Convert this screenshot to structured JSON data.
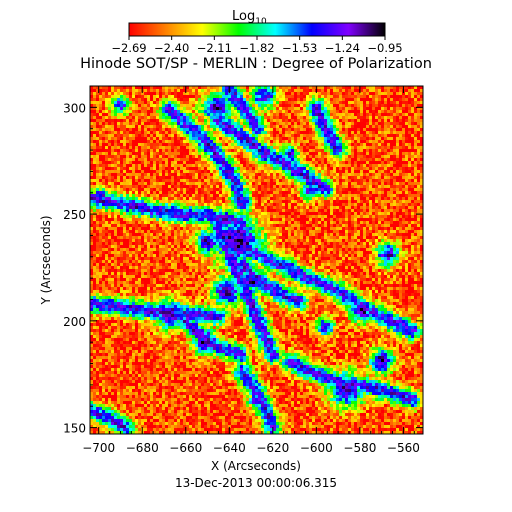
{
  "chart_data": {
    "type": "heatmap",
    "title": "Hinode SOT/SP - MERLIN : Degree of Polarization",
    "subtitle": "13-Dec-2013 00:00:06.315",
    "xlabel": "X (Arcseconds)",
    "ylabel": "Y (Arcseconds)",
    "xlim": [
      -704,
      -551
    ],
    "ylim": [
      147,
      310
    ],
    "x_ticks": [
      -700,
      -680,
      -660,
      -640,
      -620,
      -600,
      -580,
      -560
    ],
    "y_ticks": [
      150,
      200,
      250,
      300
    ],
    "x_tick_labels": [
      "−700",
      "−680",
      "−660",
      "−640",
      "−620",
      "−600",
      "−580",
      "−560"
    ],
    "y_tick_labels": [
      "150",
      "200",
      "250",
      "300"
    ],
    "colorbar": {
      "label_base": "Log",
      "label_sub": "10",
      "range": [
        -2.69,
        -0.95
      ],
      "ticks": [
        -2.69,
        -2.4,
        -2.11,
        -1.82,
        -1.53,
        -1.24,
        -0.95
      ],
      "tick_labels": [
        "−2.69",
        "−2.40",
        "−2.11",
        "−1.82",
        "−1.53",
        "−1.24",
        "−0.95"
      ],
      "colors": [
        "#ff0000",
        "#ff8000",
        "#ffff00",
        "#00ff00",
        "#00ffff",
        "#0000ff",
        "#8000ff",
        "#000000"
      ]
    },
    "pattern": {
      "background_level": -2.55,
      "network_lanes": [
        {
          "x": [
            -704,
            -690,
            -676,
            -662,
            -648,
            -634
          ],
          "y": [
            257,
            255,
            252,
            250,
            249,
            246
          ]
        },
        {
          "x": [
            -668,
            -655,
            -645,
            -638,
            -634
          ],
          "y": [
            299,
            288,
            277,
            266,
            255
          ]
        },
        {
          "x": [
            -642,
            -632,
            -622,
            -612,
            -602,
            -590,
            -578,
            -566,
            -556
          ],
          "y": [
            240,
            234,
            229,
            224,
            219,
            214,
            206,
            200,
            195
          ]
        },
        {
          "x": [
            -645,
            -640,
            -635,
            -630,
            -625,
            -620
          ],
          "y": [
            244,
            232,
            220,
            208,
            196,
            184
          ]
        },
        {
          "x": [
            -645,
            -634,
            -625,
            -615,
            -605,
            -596
          ],
          "y": [
            294,
            286,
            279,
            274,
            268,
            262
          ]
        },
        {
          "x": [
            -640,
            -635,
            -630,
            -627
          ],
          "y": [
            309,
            301,
            295,
            290
          ]
        },
        {
          "x": [
            -634,
            -628,
            -622,
            -615,
            -608
          ],
          "y": [
            226,
            220,
            216,
            212,
            209
          ]
        },
        {
          "x": [
            -704,
            -692,
            -680,
            -668,
            -656,
            -645
          ],
          "y": [
            208,
            207,
            205,
            204,
            203,
            202
          ]
        },
        {
          "x": [
            -660,
            -655,
            -650,
            -646,
            -640,
            -635
          ],
          "y": [
            200,
            195,
            192,
            188,
            186,
            184
          ]
        },
        {
          "x": [
            -612,
            -602,
            -592,
            -580,
            -568,
            -556
          ],
          "y": [
            181,
            176,
            172,
            170,
            167,
            163
          ]
        },
        {
          "x": [
            -634,
            -628,
            -624,
            -620
          ],
          "y": [
            176,
            168,
            160,
            150
          ]
        },
        {
          "x": [
            -704,
            -695,
            -688
          ],
          "y": [
            158,
            154,
            150
          ]
        },
        {
          "x": [
            -600,
            -596,
            -590
          ],
          "y": [
            300,
            290,
            280
          ]
        }
      ],
      "blobs": [
        {
          "x": -636,
          "y": 237,
          "r": 8,
          "level": -1.05
        },
        {
          "x": -650,
          "y": 237,
          "r": 4,
          "level": -1.15
        },
        {
          "x": -641,
          "y": 214,
          "r": 5,
          "level": -1.1
        },
        {
          "x": -629,
          "y": 219,
          "r": 4,
          "level": -1.1
        },
        {
          "x": -667,
          "y": 203,
          "r": 5,
          "level": -1.15
        },
        {
          "x": -651,
          "y": 190,
          "r": 4,
          "level": -1.1
        },
        {
          "x": -596,
          "y": 197,
          "r": 3,
          "level": -1.2
        },
        {
          "x": -579,
          "y": 205,
          "r": 4,
          "level": -1.15
        },
        {
          "x": -570,
          "y": 181,
          "r": 4,
          "level": -1.1
        },
        {
          "x": -586,
          "y": 168,
          "r": 6,
          "level": -1.2
        },
        {
          "x": -627,
          "y": 163,
          "r": 3,
          "level": -1.2
        },
        {
          "x": -646,
          "y": 300,
          "r": 5,
          "level": -1.2
        },
        {
          "x": -624,
          "y": 305,
          "r": 4,
          "level": -1.25
        },
        {
          "x": -603,
          "y": 261,
          "r": 3,
          "level": -1.3
        },
        {
          "x": -567,
          "y": 231,
          "r": 4,
          "level": -1.2
        },
        {
          "x": -699,
          "y": 258,
          "r": 3,
          "level": -1.2
        },
        {
          "x": -690,
          "y": 301,
          "r": 3,
          "level": -1.3
        },
        {
          "x": -612,
          "y": 278,
          "r": 3,
          "level": -1.3
        }
      ]
    }
  }
}
